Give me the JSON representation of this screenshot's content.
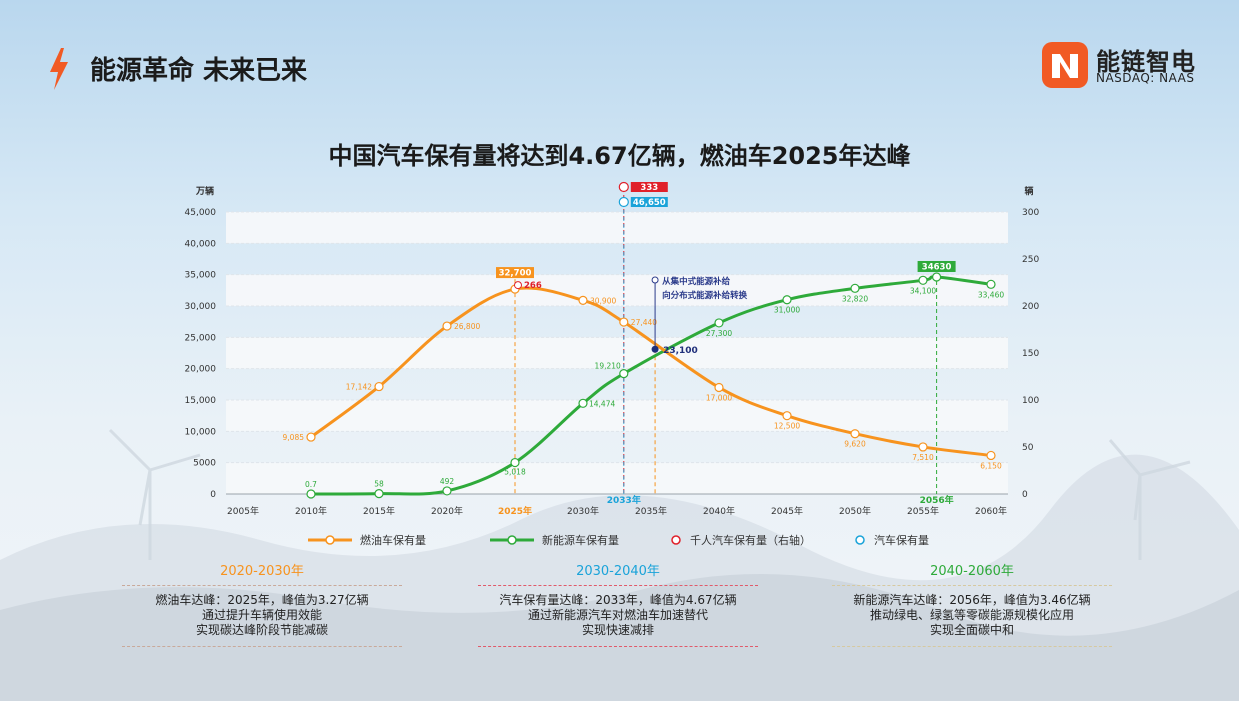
{
  "header": {
    "title": "能源革命 未来已来"
  },
  "logo": {
    "name_cn": "能链智电",
    "name_en": "NASDAQ: NAAS"
  },
  "colors": {
    "fuel": "#f7931e",
    "nev": "#2eaa3a",
    "per1000": "#e0202a",
    "total": "#1aa3d9",
    "accent": "#f15a24"
  },
  "chart_data": {
    "type": "line",
    "title": "中国汽车保有量将达到4.67亿辆，燃油车2025年达峰",
    "ylabel_left": "万辆",
    "ylabel_right": "辆",
    "ylim_left": [
      0,
      45000
    ],
    "ylim_right": [
      0,
      300
    ],
    "y_ticks_left": [
      "0",
      "5000",
      "10,000",
      "15,000",
      "20,000",
      "25,000",
      "30,000",
      "35,000",
      "40,000",
      "45,000"
    ],
    "y_ticks_right": [
      "0",
      "50",
      "100",
      "150",
      "200",
      "250",
      "300"
    ],
    "x_ticks": [
      "2005年",
      "2010年",
      "2015年",
      "2020年",
      "2025年",
      "2030年",
      "2035年",
      "2040年",
      "2045年",
      "2050年",
      "2055年",
      "2060年"
    ],
    "x_extra_labels": [
      {
        "label": "2033年",
        "x": 2033,
        "color": "#1aa3d9"
      },
      {
        "label": "2056年",
        "x": 2056,
        "color": "#2eaa3a"
      }
    ],
    "series": [
      {
        "name": "燃油车保有量",
        "points": [
          {
            "x": 2010,
            "y": 9085,
            "label": "9,085"
          },
          {
            "x": 2015,
            "y": 17142,
            "label": "17,142"
          },
          {
            "x": 2020,
            "y": 26800,
            "label": "26,800"
          },
          {
            "x": 2025,
            "y": 32700,
            "label": "32,700"
          },
          {
            "x": 2030,
            "y": 30900,
            "label": "30,900"
          },
          {
            "x": 2033,
            "y": 27440,
            "label": "27,440"
          },
          {
            "x": 2040,
            "y": 17000,
            "label": "17,000"
          },
          {
            "x": 2045,
            "y": 12500,
            "label": "12,500"
          },
          {
            "x": 2050,
            "y": 9620,
            "label": "9,620"
          },
          {
            "x": 2055,
            "y": 7510,
            "label": "7,510"
          },
          {
            "x": 2060,
            "y": 6150,
            "label": "6,150"
          }
        ]
      },
      {
        "name": "新能源车保有量",
        "points": [
          {
            "x": 2010,
            "y": 0.7,
            "label": "0.7"
          },
          {
            "x": 2015,
            "y": 58,
            "label": "58"
          },
          {
            "x": 2020,
            "y": 492,
            "label": "492"
          },
          {
            "x": 2025,
            "y": 5018,
            "label": "5,018"
          },
          {
            "x": 2030,
            "y": 14474,
            "label": "14,474"
          },
          {
            "x": 2033,
            "y": 19210,
            "label": "19,210"
          },
          {
            "x": 2040,
            "y": 27300,
            "label": "27,300"
          },
          {
            "x": 2045,
            "y": 31000,
            "label": "31,000"
          },
          {
            "x": 2050,
            "y": 32820,
            "label": "32,820"
          },
          {
            "x": 2055,
            "y": 34100,
            "label": "34,100"
          },
          {
            "x": 2056,
            "y": 34630,
            "label": "34630"
          },
          {
            "x": 2060,
            "y": 33460,
            "label": "33,460"
          }
        ]
      },
      {
        "name": "千人汽车保有量（右轴）",
        "points": [
          {
            "x": 2033,
            "y": 333,
            "label": "333"
          }
        ]
      },
      {
        "name": "汽车保有量",
        "points": [
          {
            "x": 2033,
            "y": 46650,
            "label": "46,650"
          }
        ]
      }
    ],
    "peak_labels": {
      "fuel_peak": "32,700",
      "per1000_at_peak": "266",
      "nev_peak": "34630",
      "total_peak": "46,650",
      "per1000_peak": "333"
    },
    "annotation": {
      "text_line1": "从集中式能源补给",
      "text_line2": "向分布式能源补给转换",
      "crossover_x": 2035.3,
      "crossover_y": 23100,
      "crossover_label": "23,100"
    },
    "grid": "horizontal bands",
    "legend": "bottom"
  },
  "sections": [
    {
      "title": "2020-2030年",
      "line1": "燃油车达峰：2025年，峰值为3.27亿辆",
      "line2": "通过提升车辆使用效能",
      "line3": "实现碳达峰阶段节能减碳",
      "color": "#f7931e",
      "border": "#c9a99a"
    },
    {
      "title": "2030-2040年",
      "line1": "汽车保有量达峰：2033年，峰值为4.67亿辆",
      "line2": "通过新能源汽车对燃油车加速替代",
      "line3": "实现快速减排",
      "color": "#1aa3d9",
      "border": "#e05a6a"
    },
    {
      "title": "2040-2060年",
      "line1": "新能源汽车达峰：2056年，峰值为3.46亿辆",
      "line2": "推动绿电、绿氢等零碳能源规模化应用",
      "line3": "实现全面碳中和",
      "color": "#2eaa3a",
      "border": "#d6c9a0"
    }
  ]
}
